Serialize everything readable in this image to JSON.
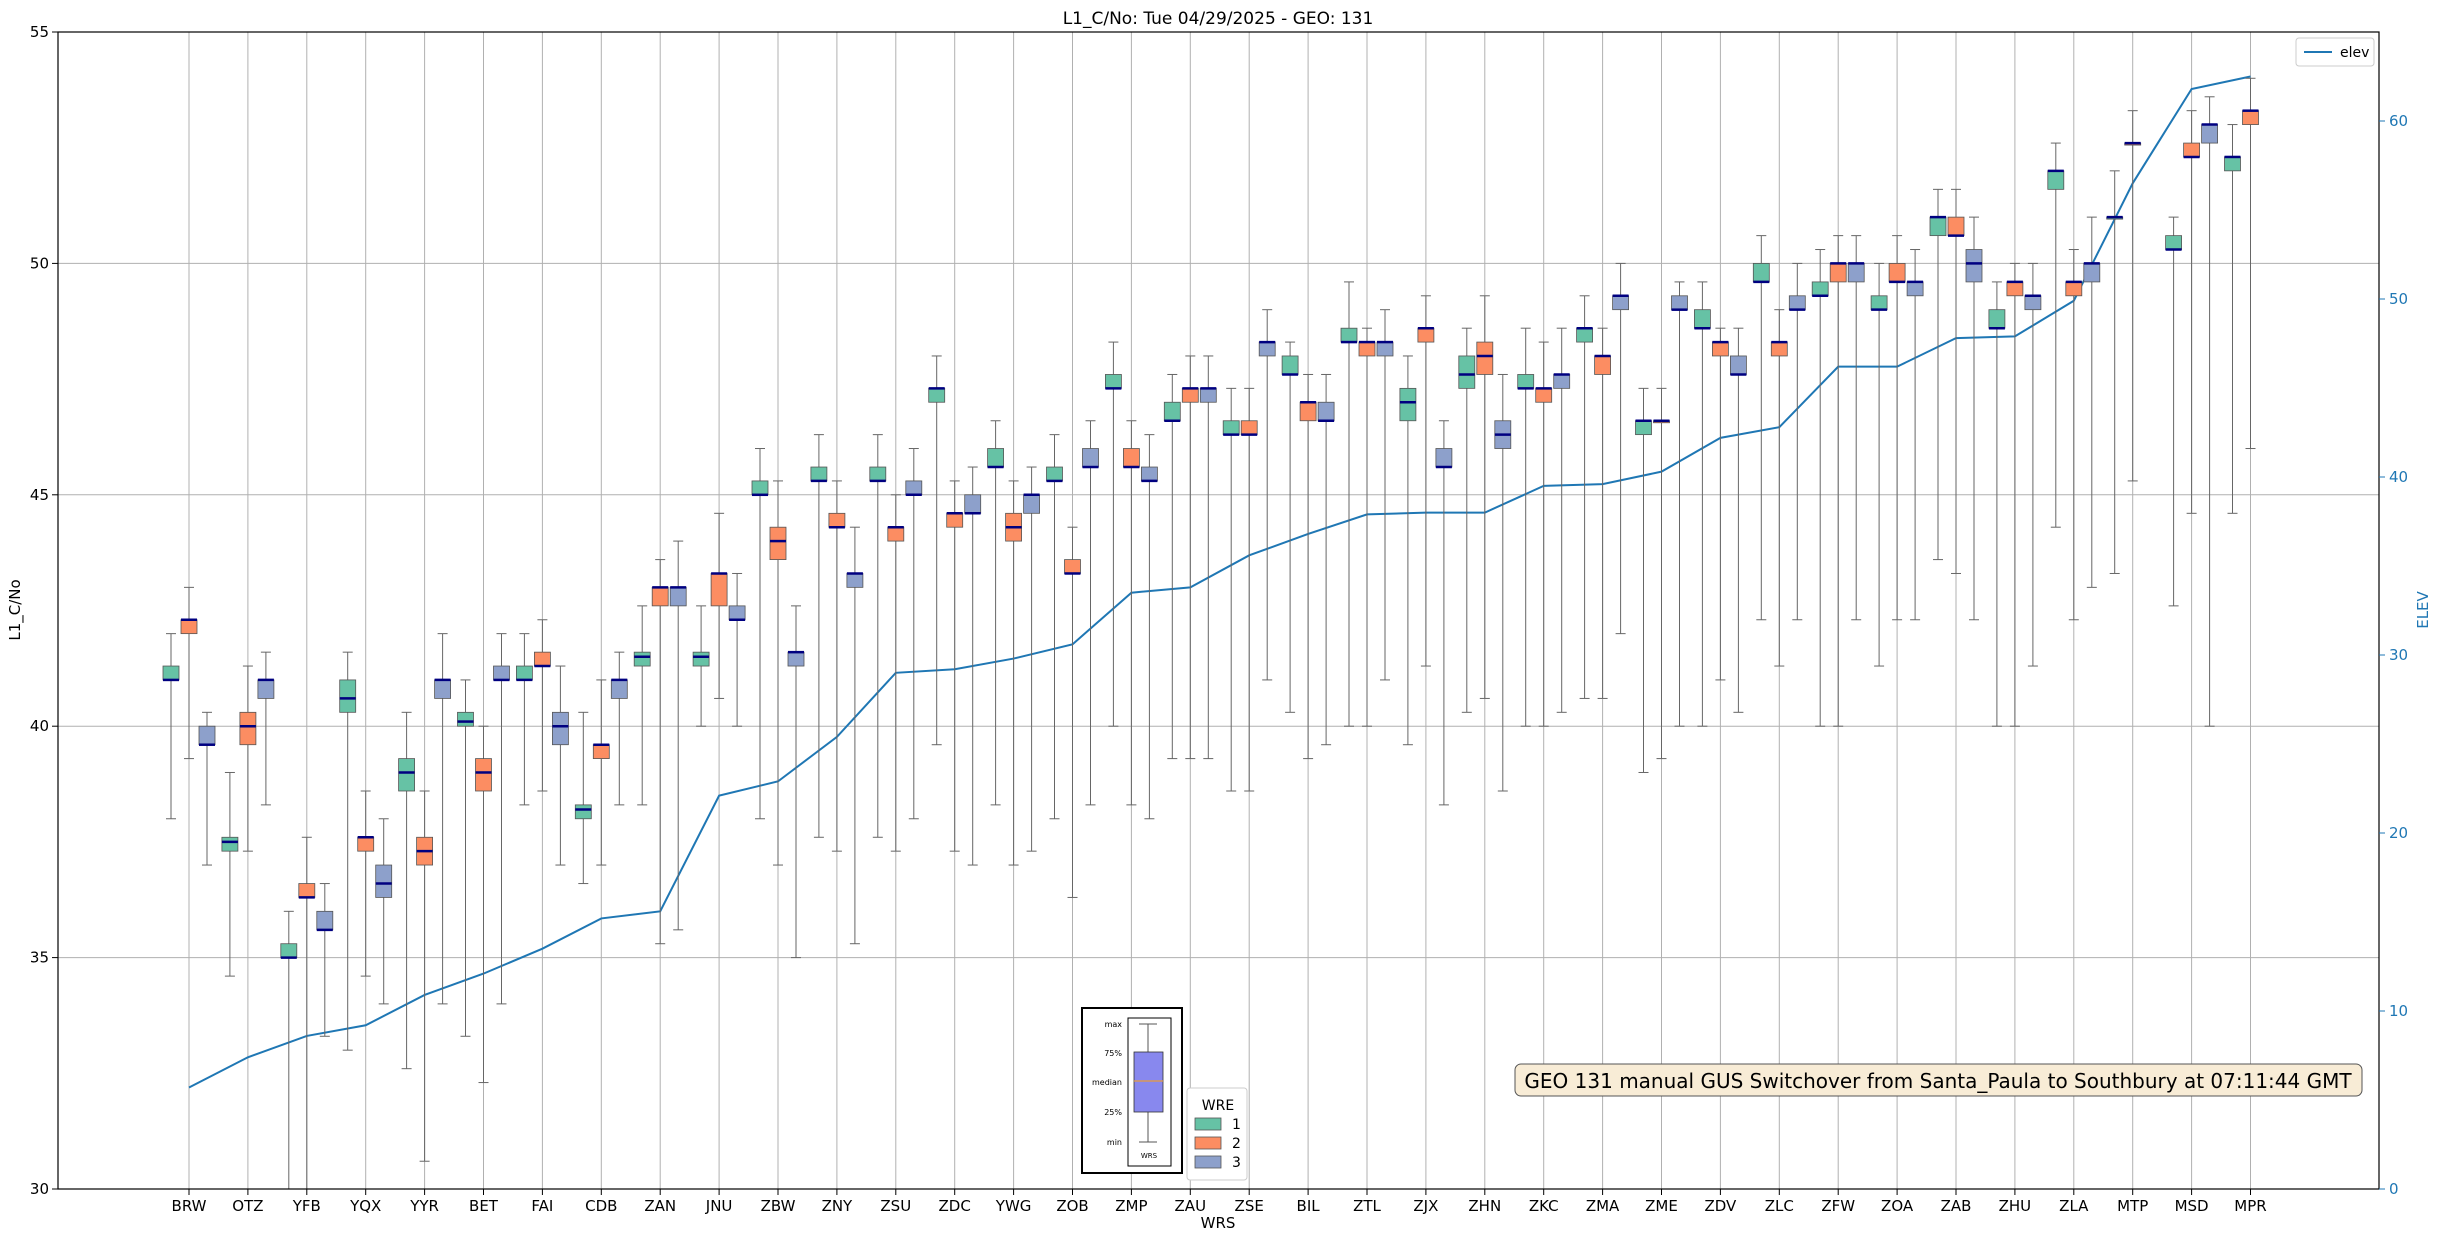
{
  "chart_data": {
    "type": "box",
    "title": "L1_C/No: Tue 04/29/2025 - GEO: 131",
    "xlabel": "WRS",
    "ylabel": "L1_C/No",
    "y2label": "ELEV",
    "ylim": [
      30,
      55
    ],
    "y2lim": [
      0,
      65
    ],
    "yticks": [
      30,
      35,
      40,
      45,
      50,
      55
    ],
    "y2ticks": [
      0,
      10,
      20,
      30,
      40,
      50,
      60
    ],
    "grid": true,
    "categories": [
      "BRW",
      "OTZ",
      "YFB",
      "YQX",
      "YYR",
      "BET",
      "FAI",
      "CDB",
      "ZAN",
      "JNU",
      "ZBW",
      "ZNY",
      "ZSU",
      "ZDC",
      "YWG",
      "ZOB",
      "ZMP",
      "ZAU",
      "ZSE",
      "BIL",
      "ZTL",
      "ZJX",
      "ZHN",
      "ZKC",
      "ZMA",
      "ZME",
      "ZDV",
      "ZLC",
      "ZFW",
      "ZOA",
      "ZAB",
      "ZHU",
      "ZLA",
      "MTP",
      "MSD",
      "MPR"
    ],
    "series": [
      {
        "name": "1",
        "color": "#66c2a5",
        "boxes": [
          [
            38.0,
            41.0,
            41.0,
            41.3,
            42.0
          ],
          [
            34.6,
            37.3,
            37.5,
            37.6,
            39.0
          ],
          [
            30.0,
            35.0,
            35.0,
            35.3,
            36.0
          ],
          [
            33.0,
            40.3,
            40.6,
            41.0,
            41.6
          ],
          [
            32.6,
            38.6,
            39.0,
            39.3,
            40.3
          ],
          [
            33.3,
            40.0,
            40.1,
            40.3,
            41.0
          ],
          [
            38.3,
            41.0,
            41.0,
            41.3,
            42.0
          ],
          [
            36.6,
            38.0,
            38.2,
            38.3,
            40.3
          ],
          [
            38.3,
            41.3,
            41.5,
            41.6,
            42.6
          ],
          [
            40.0,
            41.3,
            41.5,
            41.6,
            42.6
          ],
          [
            38.0,
            45.0,
            45.0,
            45.3,
            46.0
          ],
          [
            37.6,
            45.3,
            45.3,
            45.6,
            46.3
          ],
          [
            37.6,
            45.3,
            45.3,
            45.6,
            46.3
          ],
          [
            39.6,
            47.0,
            47.3,
            47.3,
            48.0
          ],
          [
            38.3,
            45.6,
            45.6,
            46.0,
            46.6
          ],
          [
            38.0,
            45.3,
            45.3,
            45.6,
            46.3
          ],
          [
            40.0,
            47.3,
            47.3,
            47.6,
            48.3
          ],
          [
            39.3,
            46.6,
            46.6,
            47.0,
            47.6
          ],
          [
            38.6,
            46.3,
            46.3,
            46.6,
            47.3
          ],
          [
            40.3,
            47.6,
            47.6,
            48.0,
            48.3
          ],
          [
            40.0,
            48.3,
            48.3,
            48.6,
            49.6
          ],
          [
            39.6,
            46.6,
            47.0,
            47.3,
            48.0
          ],
          [
            40.3,
            47.3,
            47.6,
            48.0,
            48.6
          ],
          [
            40.0,
            47.3,
            47.3,
            47.6,
            48.6
          ],
          [
            40.6,
            48.3,
            48.6,
            48.6,
            49.3
          ],
          [
            39.0,
            46.3,
            46.6,
            46.6,
            47.3
          ],
          [
            40.0,
            48.6,
            48.6,
            49.0,
            49.6
          ],
          [
            42.3,
            49.6,
            49.6,
            50.0,
            50.6
          ],
          [
            40.0,
            49.3,
            49.3,
            49.6,
            50.3
          ],
          [
            41.3,
            49.0,
            49.0,
            49.3,
            50.0
          ],
          [
            43.6,
            50.6,
            51.0,
            51.0,
            51.6
          ],
          [
            40.0,
            48.6,
            48.6,
            49.0,
            49.6
          ],
          [
            44.3,
            51.6,
            52.0,
            52.0,
            52.6
          ],
          [
            43.3,
            51.0,
            51.0,
            51.0,
            52.0
          ],
          [
            42.6,
            50.3,
            50.3,
            50.6,
            51.0
          ],
          [
            44.6,
            52.0,
            52.3,
            52.3,
            53.0
          ]
        ]
      },
      {
        "name": "2",
        "color": "#fc8d62",
        "boxes": [
          [
            39.3,
            42.0,
            42.3,
            42.3,
            43.0
          ],
          [
            37.3,
            39.6,
            40.0,
            40.3,
            41.3
          ],
          [
            30.0,
            36.3,
            36.3,
            36.6,
            37.6
          ],
          [
            34.6,
            37.3,
            37.6,
            37.6,
            38.6
          ],
          [
            30.6,
            37.0,
            37.3,
            37.6,
            38.6
          ],
          [
            32.3,
            38.6,
            39.0,
            39.3,
            40.0
          ],
          [
            38.6,
            41.3,
            41.3,
            41.6,
            42.3
          ],
          [
            37.0,
            39.3,
            39.6,
            39.6,
            41.0
          ],
          [
            35.3,
            42.6,
            43.0,
            43.0,
            43.6
          ],
          [
            40.6,
            42.6,
            43.3,
            43.3,
            44.6
          ],
          [
            37.0,
            43.6,
            44.0,
            44.3,
            45.3
          ],
          [
            37.3,
            44.3,
            44.3,
            44.6,
            45.3
          ],
          [
            37.3,
            44.0,
            44.3,
            44.3,
            45.0
          ],
          [
            37.3,
            44.3,
            44.6,
            44.6,
            45.3
          ],
          [
            37.0,
            44.0,
            44.3,
            44.6,
            45.3
          ],
          [
            36.3,
            43.3,
            43.3,
            43.6,
            44.3
          ],
          [
            38.3,
            45.6,
            45.6,
            46.0,
            46.6
          ],
          [
            39.3,
            47.0,
            47.3,
            47.3,
            48.0
          ],
          [
            38.6,
            46.3,
            46.3,
            46.6,
            47.3
          ],
          [
            39.3,
            46.6,
            47.0,
            47.0,
            47.6
          ],
          [
            40.0,
            48.0,
            48.3,
            48.3,
            48.6
          ],
          [
            41.3,
            48.3,
            48.6,
            48.6,
            49.3
          ],
          [
            40.6,
            47.6,
            48.0,
            48.3,
            49.3
          ],
          [
            40.0,
            47.0,
            47.3,
            47.3,
            48.3
          ],
          [
            40.6,
            47.6,
            48.0,
            48.0,
            48.6
          ],
          [
            39.3,
            46.6,
            46.6,
            46.6,
            47.3
          ],
          [
            41.0,
            48.0,
            48.3,
            48.3,
            48.6
          ],
          [
            41.3,
            48.0,
            48.3,
            48.3,
            49.0
          ],
          [
            40.0,
            49.6,
            50.0,
            50.0,
            50.6
          ],
          [
            42.3,
            49.6,
            49.6,
            50.0,
            50.6
          ],
          [
            43.3,
            50.6,
            50.6,
            51.0,
            51.6
          ],
          [
            40.0,
            49.3,
            49.6,
            49.6,
            50.0
          ],
          [
            42.3,
            49.3,
            49.6,
            49.6,
            50.3
          ],
          [
            45.3,
            52.6,
            52.6,
            52.6,
            53.3
          ],
          [
            44.6,
            52.3,
            52.3,
            52.6,
            53.3
          ],
          [
            46.0,
            53.0,
            53.3,
            53.3,
            54.0
          ]
        ]
      },
      {
        "name": "3",
        "color": "#8da0cb",
        "boxes": [
          [
            37.0,
            39.6,
            39.6,
            40.0,
            40.3
          ],
          [
            38.3,
            40.6,
            41.0,
            41.0,
            41.6
          ],
          [
            33.3,
            35.6,
            35.6,
            36.0,
            36.6
          ],
          [
            34.0,
            36.3,
            36.6,
            37.0,
            38.0
          ],
          [
            34.0,
            40.6,
            41.0,
            41.0,
            42.0
          ],
          [
            34.0,
            41.0,
            41.0,
            41.3,
            42.0
          ],
          [
            37.0,
            39.6,
            40.0,
            40.3,
            41.3
          ],
          [
            38.3,
            40.6,
            41.0,
            41.0,
            41.6
          ],
          [
            35.6,
            42.6,
            43.0,
            43.0,
            44.0
          ],
          [
            40.0,
            42.3,
            42.3,
            42.6,
            43.3
          ],
          [
            35.0,
            41.3,
            41.6,
            41.6,
            42.6
          ],
          [
            35.3,
            43.0,
            43.3,
            43.3,
            44.3
          ],
          [
            38.0,
            45.0,
            45.0,
            45.3,
            46.0
          ],
          [
            37.0,
            44.6,
            44.6,
            45.0,
            45.6
          ],
          [
            37.3,
            44.6,
            45.0,
            45.0,
            45.6
          ],
          [
            38.3,
            45.6,
            45.6,
            46.0,
            46.6
          ],
          [
            38.0,
            45.3,
            45.3,
            45.6,
            46.3
          ],
          [
            39.3,
            47.0,
            47.3,
            47.3,
            48.0
          ],
          [
            41.0,
            48.0,
            48.3,
            48.3,
            49.0
          ],
          [
            39.6,
            46.6,
            46.6,
            47.0,
            47.6
          ],
          [
            41.0,
            48.0,
            48.3,
            48.3,
            49.0
          ],
          [
            38.3,
            45.6,
            45.6,
            46.0,
            46.6
          ],
          [
            38.6,
            46.0,
            46.3,
            46.6,
            47.6
          ],
          [
            40.3,
            47.3,
            47.6,
            47.6,
            48.6
          ],
          [
            42.0,
            49.0,
            49.3,
            49.3,
            50.0
          ],
          [
            40.0,
            49.0,
            49.0,
            49.3,
            49.6
          ],
          [
            40.3,
            47.6,
            47.6,
            48.0,
            48.6
          ],
          [
            42.3,
            49.0,
            49.0,
            49.3,
            50.0
          ],
          [
            42.3,
            49.6,
            50.0,
            50.0,
            50.6
          ],
          [
            42.3,
            49.3,
            49.6,
            49.6,
            50.3
          ],
          [
            42.3,
            49.6,
            50.0,
            50.3,
            51.0
          ],
          [
            41.3,
            49.0,
            49.3,
            49.3,
            50.0
          ],
          [
            43.0,
            49.6,
            50.0,
            50.0,
            51.0
          ],
          [
            null,
            null,
            null,
            null,
            null
          ],
          [
            40.0,
            52.6,
            53.0,
            53.0,
            53.6
          ],
          [
            null,
            null,
            null,
            null,
            null
          ]
        ]
      }
    ],
    "elevation_series": {
      "name": "elev",
      "color": "#1f77b4",
      "values": [
        5.7,
        7.4,
        8.6,
        9.2,
        10.9,
        12.1,
        13.5,
        15.2,
        15.6,
        22.1,
        22.9,
        25.4,
        29.0,
        29.2,
        29.8,
        30.6,
        33.5,
        33.8,
        35.6,
        36.8,
        37.9,
        38.0,
        38.0,
        39.5,
        39.6,
        40.3,
        42.2,
        42.8,
        46.2,
        46.2,
        47.8,
        47.9,
        49.9,
        56.5,
        61.8,
        62.5
      ]
    },
    "legend_wre": {
      "title": "WRE",
      "items": [
        "1",
        "2",
        "3"
      ]
    },
    "legend_elev": "elev",
    "annotation": "GEO 131 manual GUS Switchover from Santa_Paula to Southbury at 07:11:44 GMT",
    "explanation_inset": {
      "labels": [
        "max",
        "75%",
        "median",
        "25%",
        "min"
      ],
      "xlabel": "WRS"
    }
  }
}
